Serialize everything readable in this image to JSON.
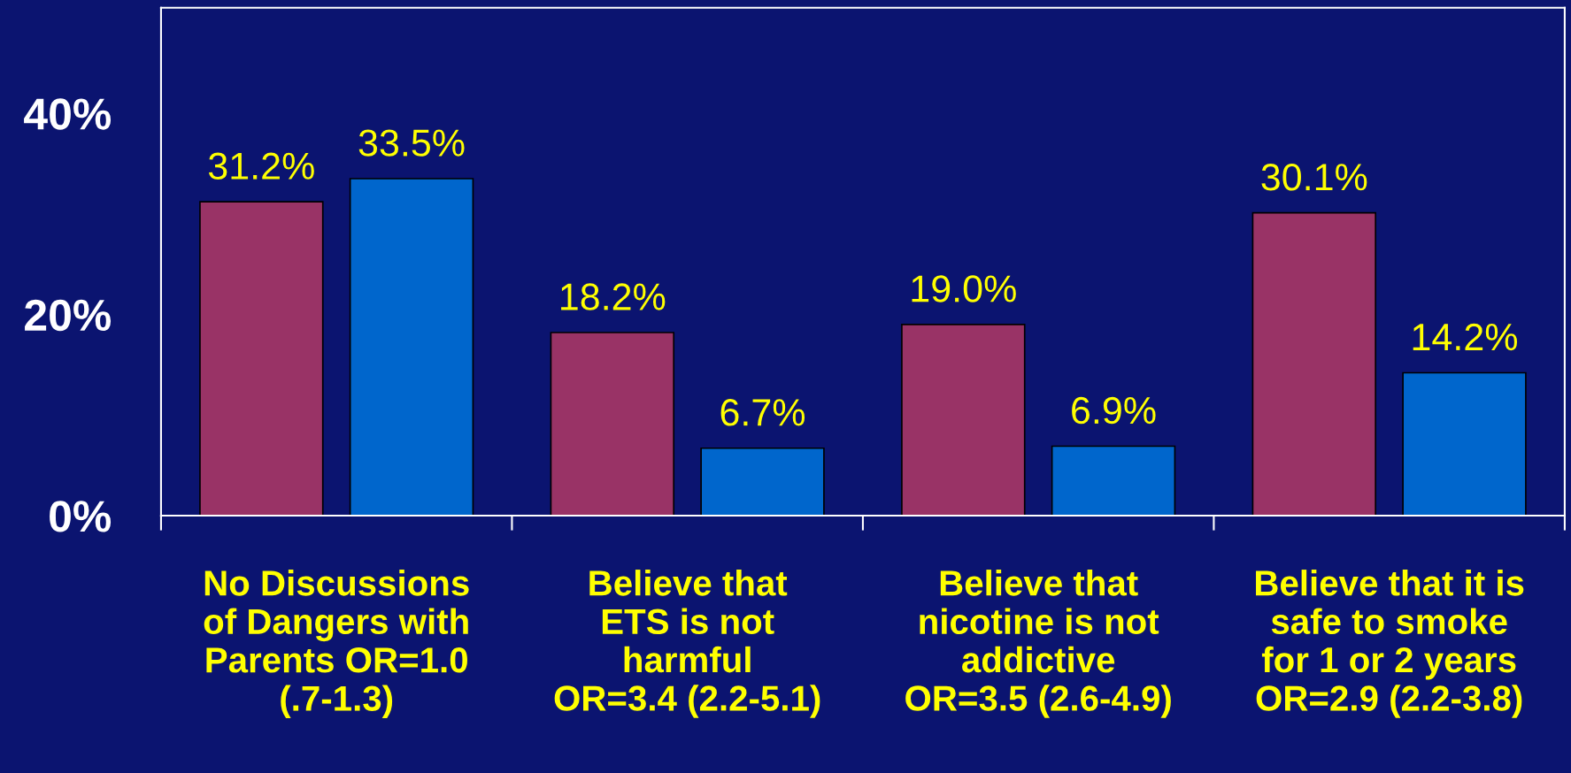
{
  "chart_data": {
    "type": "bar",
    "categories": [
      "No Discussions\nof Dangers with\nParents OR=1.0\n(.7-1.3)",
      "Believe that\nETS is not\nharmful\nOR=3.4 (2.2-5.1)",
      "Believe that\nnicotine is not\naddictive\nOR=3.5 (2.6-4.9)",
      "Believe that it is\nsafe to smoke\nfor 1 or 2 years\nOR=2.9 (2.2-3.8)"
    ],
    "series": [
      {
        "color": "#993366",
        "values": [
          31.2,
          18.2,
          19.0,
          30.1
        ],
        "value_labels": [
          "31.2%",
          "18.2%",
          "19.0%",
          "30.1%"
        ]
      },
      {
        "color": "#0066cc",
        "values": [
          33.5,
          6.7,
          6.9,
          14.2
        ],
        "value_labels": [
          "33.5%",
          "6.7%",
          "6.9%",
          "14.2%"
        ]
      }
    ],
    "ylim": [
      0,
      50.5
    ],
    "yticks": [
      {
        "value": 0,
        "label": "0%"
      },
      {
        "value": 20,
        "label": "20%"
      },
      {
        "value": 40,
        "label": "40%"
      }
    ],
    "grid": false,
    "legend": false
  }
}
